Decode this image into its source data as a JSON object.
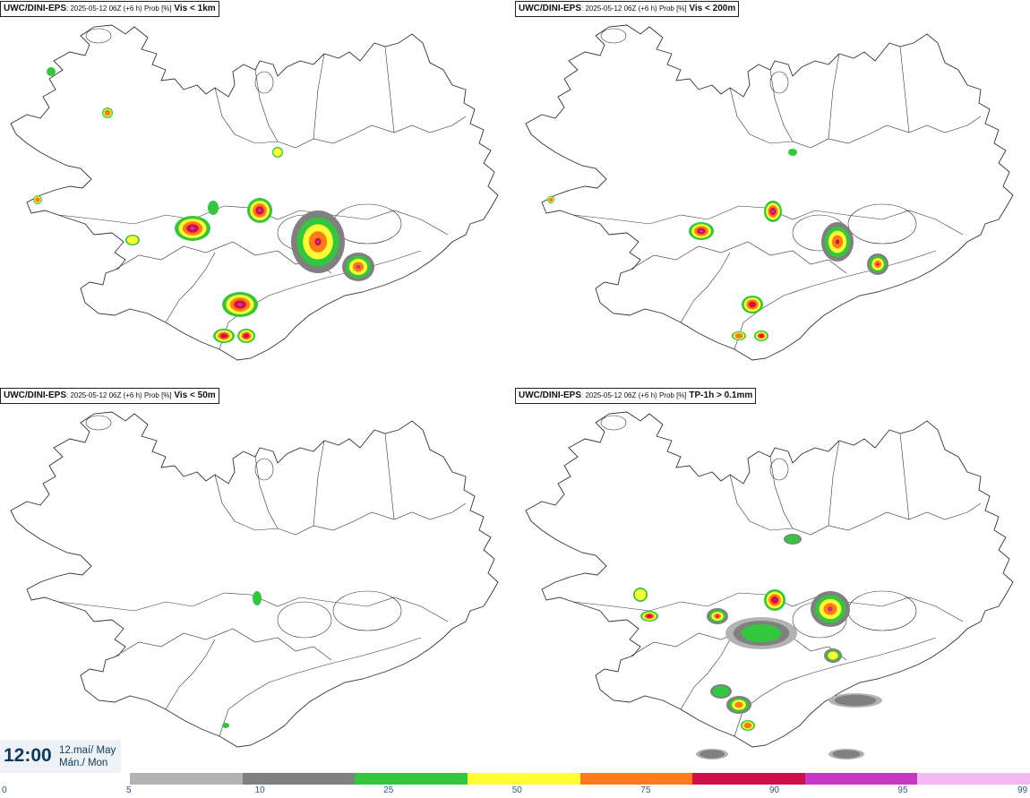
{
  "panels": [
    {
      "model": "UWC/DINI-EPS",
      "detail": ": 2025-05-12 06Z (+6 h) Prob [%]",
      "variable": " Vis < 1km"
    },
    {
      "model": "UWC/DINI-EPS",
      "detail": ": 2025-05-12 06Z (+6 h) Prob [%]",
      "variable": " Vis < 200m"
    },
    {
      "model": "UWC/DINI-EPS",
      "detail": ": 2025-05-12 06Z (+6 h) Prob [%]",
      "variable": " Vis < 50m"
    },
    {
      "model": "UWC/DINI-EPS",
      "detail": ": 2025-05-12 06Z (+6 h) Prob [%]",
      "variable": " TP-1h > 0.1mm"
    }
  ],
  "time_box": {
    "time": "12:00",
    "date": "12.maí/ May",
    "weekday": "Mán./ Mon"
  },
  "colorbar": {
    "ticks": [
      "0",
      "5",
      "10",
      "25",
      "50",
      "75",
      "90",
      "95",
      "99"
    ],
    "colors": [
      "#ffffff",
      "#b3b3b3",
      "#808080",
      "#33c73d",
      "#ffff33",
      "#ff7a1a",
      "#d01048",
      "#c838c8",
      "#f4b8f4"
    ]
  }
}
